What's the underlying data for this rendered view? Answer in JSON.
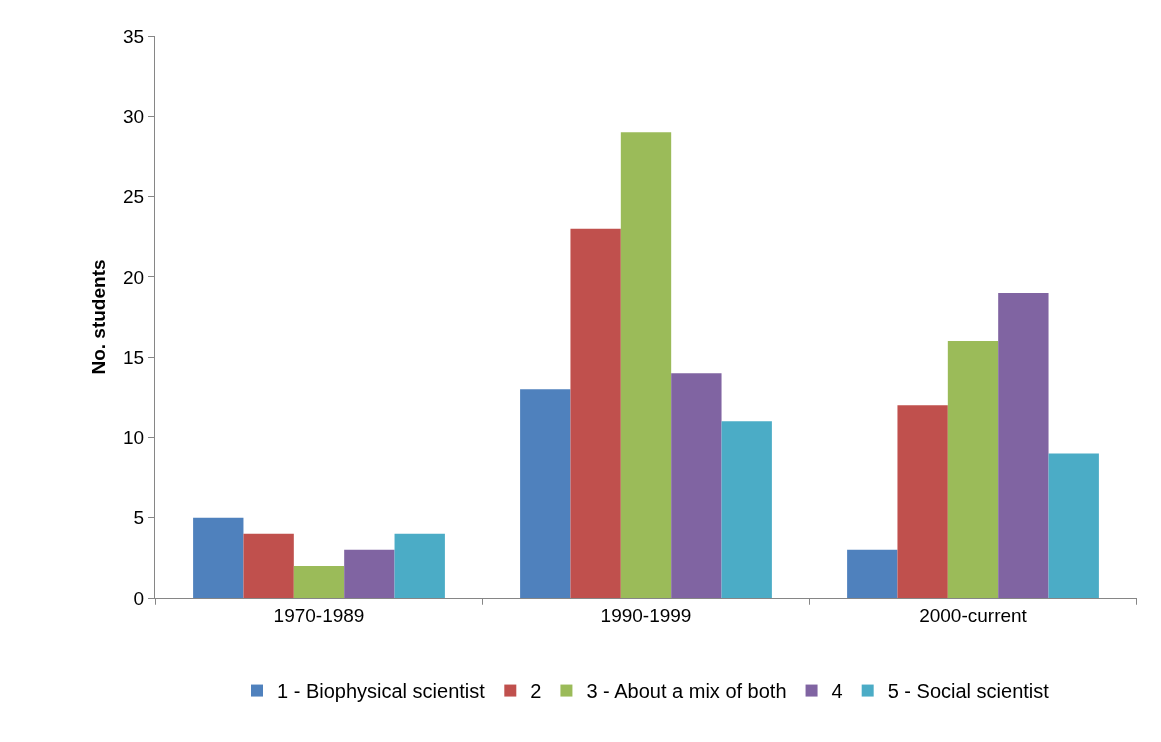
{
  "chart_data": {
    "type": "bar",
    "ylabel": "No. students",
    "categories": [
      "1970-1989",
      "1990-1999",
      "2000-current"
    ],
    "series": [
      {
        "name": "1 - Biophysical scientist",
        "color": "#4f81bd",
        "values": [
          5,
          13,
          3
        ]
      },
      {
        "name": "2",
        "color": "#c0504d",
        "values": [
          4,
          23,
          12
        ]
      },
      {
        "name": "3 - About a mix of both",
        "color": "#9bbb59",
        "values": [
          2,
          29,
          16
        ]
      },
      {
        "name": "4",
        "color": "#8064a2",
        "values": [
          3,
          14,
          19
        ]
      },
      {
        "name": "5 - Social scientist",
        "color": "#4bacc6",
        "values": [
          4,
          11,
          9
        ]
      }
    ],
    "ylim": [
      0,
      35
    ],
    "yticks": [
      0,
      5,
      10,
      15,
      20,
      25,
      30,
      35
    ],
    "grid": false,
    "legend": "bottom"
  }
}
